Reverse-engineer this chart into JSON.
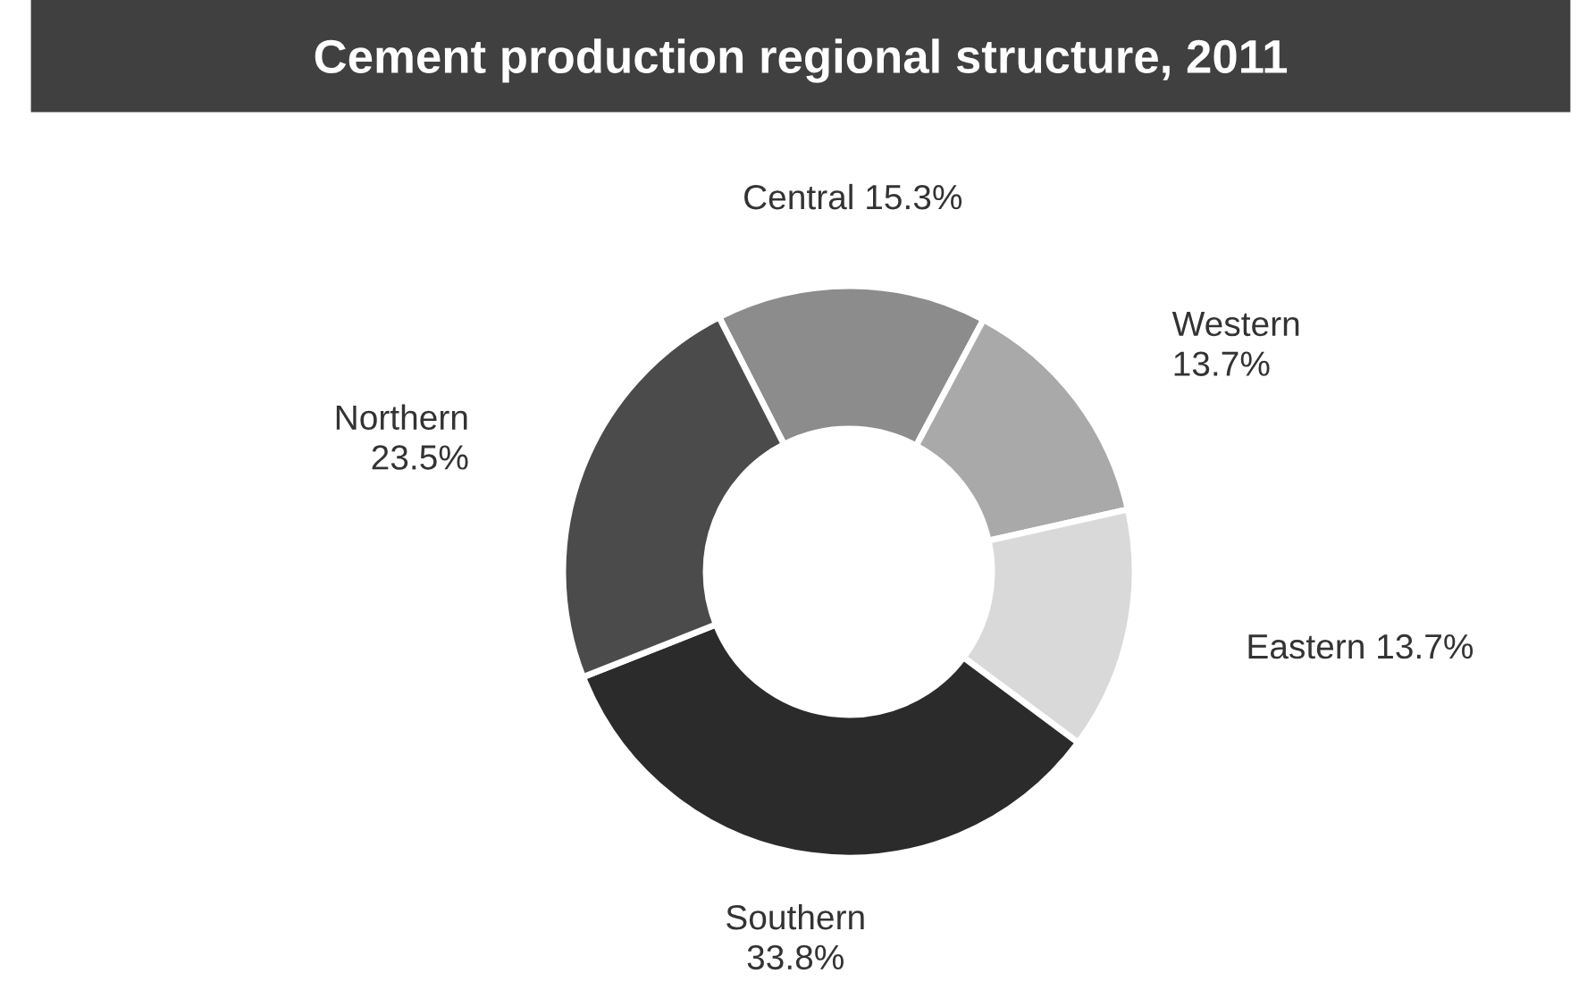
{
  "chart_data": {
    "type": "donut",
    "title": "Cement production regional structure, 2011",
    "categories": [
      "Central",
      "Western",
      "Eastern",
      "Southern",
      "Northern"
    ],
    "values": [
      15.3,
      13.7,
      13.7,
      33.8,
      23.5
    ],
    "value_labels": [
      "15.3%",
      "13.7%",
      "13.7%",
      "33.8%",
      "23.5%"
    ],
    "colors": [
      "#8c8c8c",
      "#a9a9a9",
      "#d9d9d9",
      "#2b2b2b",
      "#4b4b4b"
    ],
    "legend": false
  }
}
